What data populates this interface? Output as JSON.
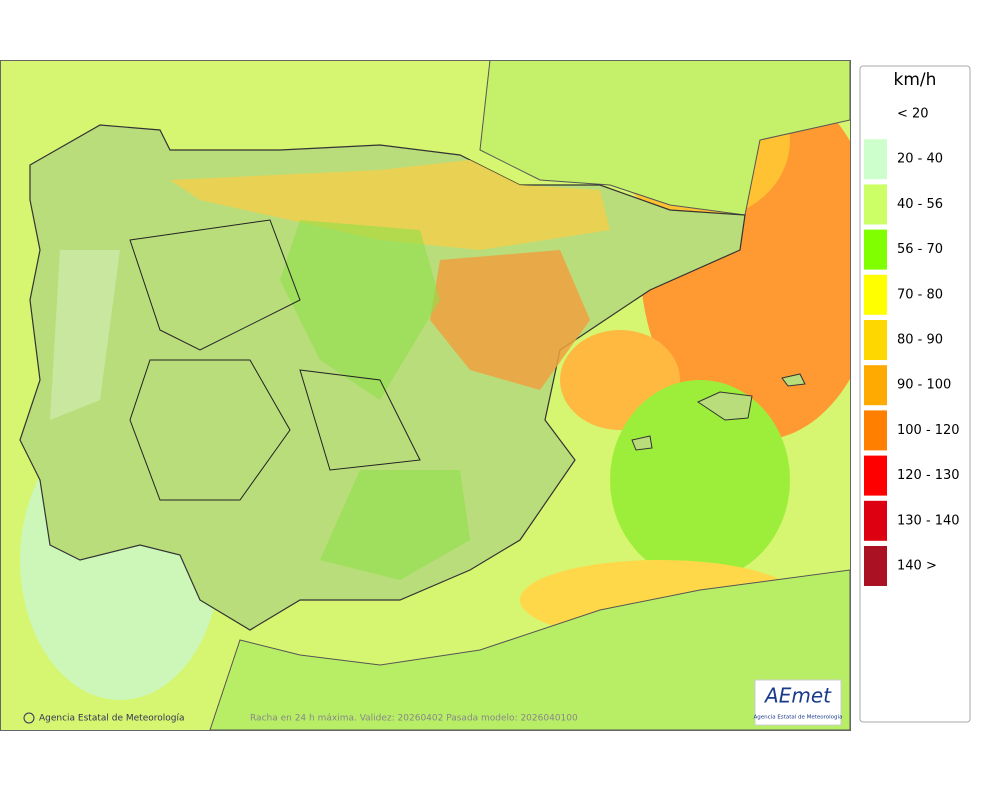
{
  "legend": {
    "title": "km/h",
    "items": [
      {
        "label": "< 20",
        "color": "#ffffff"
      },
      {
        "label": "20 - 40",
        "color": "#ccffcc"
      },
      {
        "label": "40 - 56",
        "color": "#ccff66"
      },
      {
        "label": "56 - 70",
        "color": "#80ff00"
      },
      {
        "label": "70 - 80",
        "color": "#ffff00"
      },
      {
        "label": "80 - 90",
        "color": "#ffd700"
      },
      {
        "label": "90 - 100",
        "color": "#ffaa00"
      },
      {
        "label": "100 - 120",
        "color": "#ff8000"
      },
      {
        "label": "120 - 130",
        "color": "#ff0000"
      },
      {
        "label": "130 - 140",
        "color": "#dd0011"
      },
      {
        "label": "140 >",
        "color": "#aa1122"
      }
    ]
  },
  "footer": {
    "credit": "Agencia Estatal de Meteorología",
    "caption": "Racha en 24 h máxima. Validez: 20260402 Pasada modelo: 2026040100"
  },
  "logo": {
    "name": "AEmet",
    "subtitle": "Agencia Estatal de Meteorología"
  }
}
